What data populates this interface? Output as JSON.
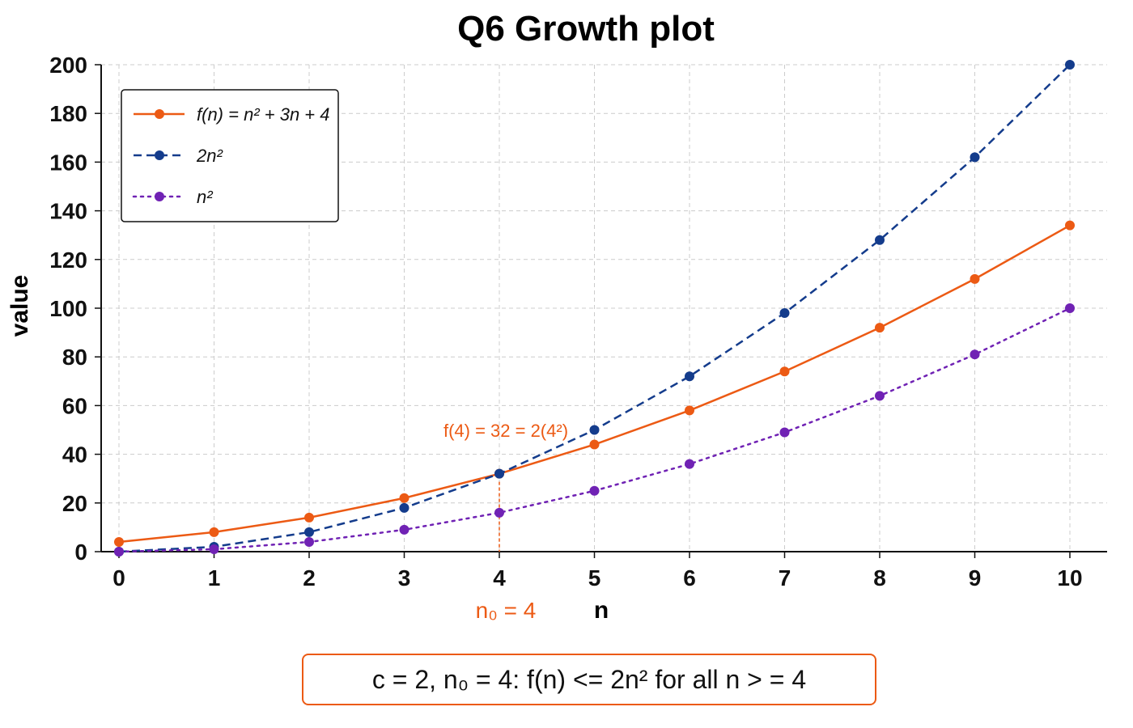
{
  "chart_data": {
    "type": "line",
    "title": "Q6 Growth plot",
    "xlabel": "n",
    "ylabel": "value",
    "x": [
      0,
      1,
      2,
      3,
      4,
      5,
      6,
      7,
      8,
      9,
      10
    ],
    "xlim": [
      0,
      10
    ],
    "ylim": [
      0,
      200
    ],
    "xticks": [
      "0",
      "1",
      "2",
      "3",
      "4",
      "5",
      "6",
      "7",
      "8",
      "9",
      "10"
    ],
    "yticks": [
      "0",
      "20",
      "40",
      "60",
      "80",
      "100",
      "120",
      "140",
      "160",
      "180",
      "200"
    ],
    "grid": true,
    "legend_position": "top-left",
    "series": [
      {
        "name": "f(n) = n² + 3n + 4",
        "values": [
          4,
          8,
          14,
          22,
          32,
          44,
          58,
          74,
          92,
          112,
          134
        ],
        "color": "#ec5a14",
        "line_style": "solid",
        "marker": "circle"
      },
      {
        "name": "2n²",
        "values": [
          0,
          2,
          8,
          18,
          32,
          50,
          72,
          98,
          128,
          162,
          200
        ],
        "color": "#143c8c",
        "line_style": "dashed",
        "marker": "circle"
      },
      {
        "name": "n²",
        "values": [
          0,
          1,
          4,
          9,
          16,
          25,
          36,
          49,
          64,
          81,
          100
        ],
        "color": "#7022b4",
        "line_style": "dotted",
        "marker": "circle"
      }
    ],
    "annotations": {
      "point_label": "f(4) = 32 = 2(4²)",
      "marker_x": 4,
      "n0_label": "n₀ = 4",
      "accent_color": "#ec5a14"
    },
    "note": "c = 2, n₀ = 4:  f(n) <= 2n² for all n > = 4"
  }
}
